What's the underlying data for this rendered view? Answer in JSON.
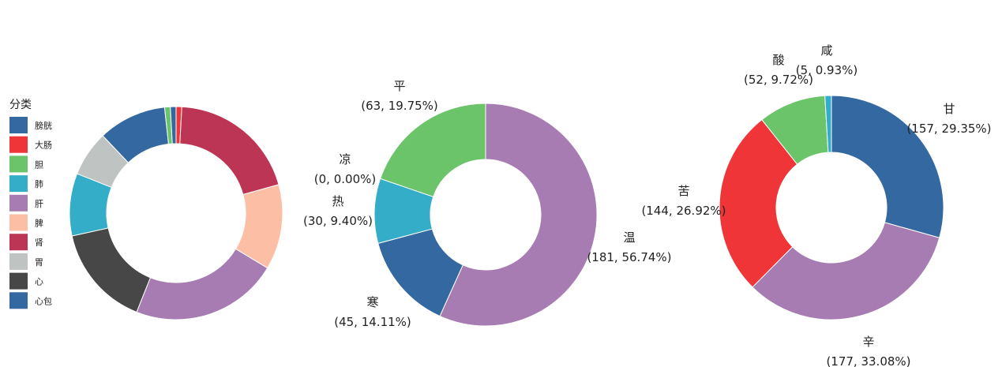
{
  "chart_data": [
    {
      "type": "pie",
      "donut": true,
      "legend_title": "分类",
      "legend_position": "left",
      "categories": [
        "膀胱",
        "大肠",
        "胆",
        "肺",
        "肝",
        "脾",
        "肾",
        "胃",
        "心",
        "心包"
      ],
      "values": [
        12,
        1,
        1,
        11,
        26,
        15,
        23,
        8,
        18,
        1
      ],
      "colors": [
        "#3468a0",
        "#f03538",
        "#6bc46a",
        "#33adc8",
        "#a67cb2",
        "#fcbfa6",
        "#bd3554",
        "#bfc4c3",
        "#474747",
        "#3468a0"
      ]
    },
    {
      "type": "pie",
      "donut": true,
      "slices": [
        {
          "name": "温",
          "value": 181,
          "label": "(181, 56.74%)",
          "color": "#a67cb2"
        },
        {
          "name": "寒",
          "value": 45,
          "label": "(45, 14.11%)",
          "color": "#3468a0"
        },
        {
          "name": "热",
          "value": 30,
          "label": "(30, 9.40%)",
          "color": "#33adc8"
        },
        {
          "name": "凉",
          "value": 0,
          "label": "(0, 0.00%)",
          "color": "#f03538"
        },
        {
          "name": "平",
          "value": 63,
          "label": "(63, 19.75%)",
          "color": "#6bc46a"
        }
      ]
    },
    {
      "type": "pie",
      "donut": true,
      "slices": [
        {
          "name": "甘",
          "value": 157,
          "label": "(157, 29.35%)",
          "color": "#3468a0"
        },
        {
          "name": "辛",
          "value": 177,
          "label": "(177, 33.08%)",
          "color": "#a67cb2"
        },
        {
          "name": "苦",
          "value": 144,
          "label": "(144, 26.92%)",
          "color": "#f03538"
        },
        {
          "name": "酸",
          "value": 52,
          "label": "(52, 9.72%)",
          "color": "#6bc46a"
        },
        {
          "name": "咸",
          "value": 5,
          "label": "(5, 0.93%)",
          "color": "#33adc8"
        }
      ]
    }
  ]
}
